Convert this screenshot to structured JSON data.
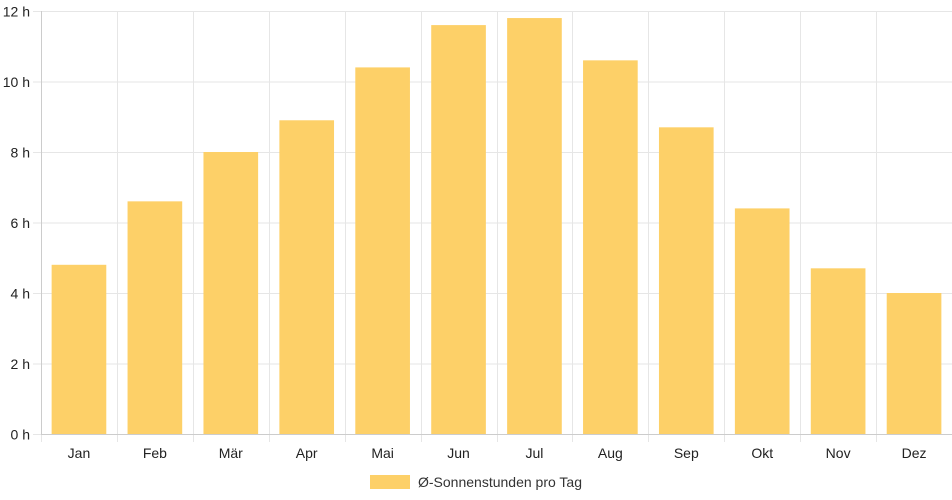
{
  "chart_data": {
    "type": "bar",
    "categories": [
      "Jan",
      "Feb",
      "Mär",
      "Apr",
      "Mai",
      "Jun",
      "Jul",
      "Aug",
      "Sep",
      "Okt",
      "Nov",
      "Dez"
    ],
    "series": [
      {
        "name": "Ø-Sonnenstunden pro Tag",
        "values": [
          4.8,
          6.6,
          8.0,
          8.9,
          10.4,
          11.6,
          11.8,
          10.6,
          8.7,
          6.4,
          4.7,
          4.0
        ],
        "color": "#fdd068"
      }
    ],
    "ylim": [
      0,
      12
    ],
    "yticks": [
      0,
      2,
      4,
      6,
      8,
      10,
      12
    ],
    "ytick_labels": [
      "0 h",
      "2 h",
      "4 h",
      "6 h",
      "8 h",
      "10 h",
      "12 h"
    ],
    "grid": true,
    "legend_position": "bottom",
    "grid_color": "#e6e6e6",
    "axis_color": "#cccccc"
  }
}
